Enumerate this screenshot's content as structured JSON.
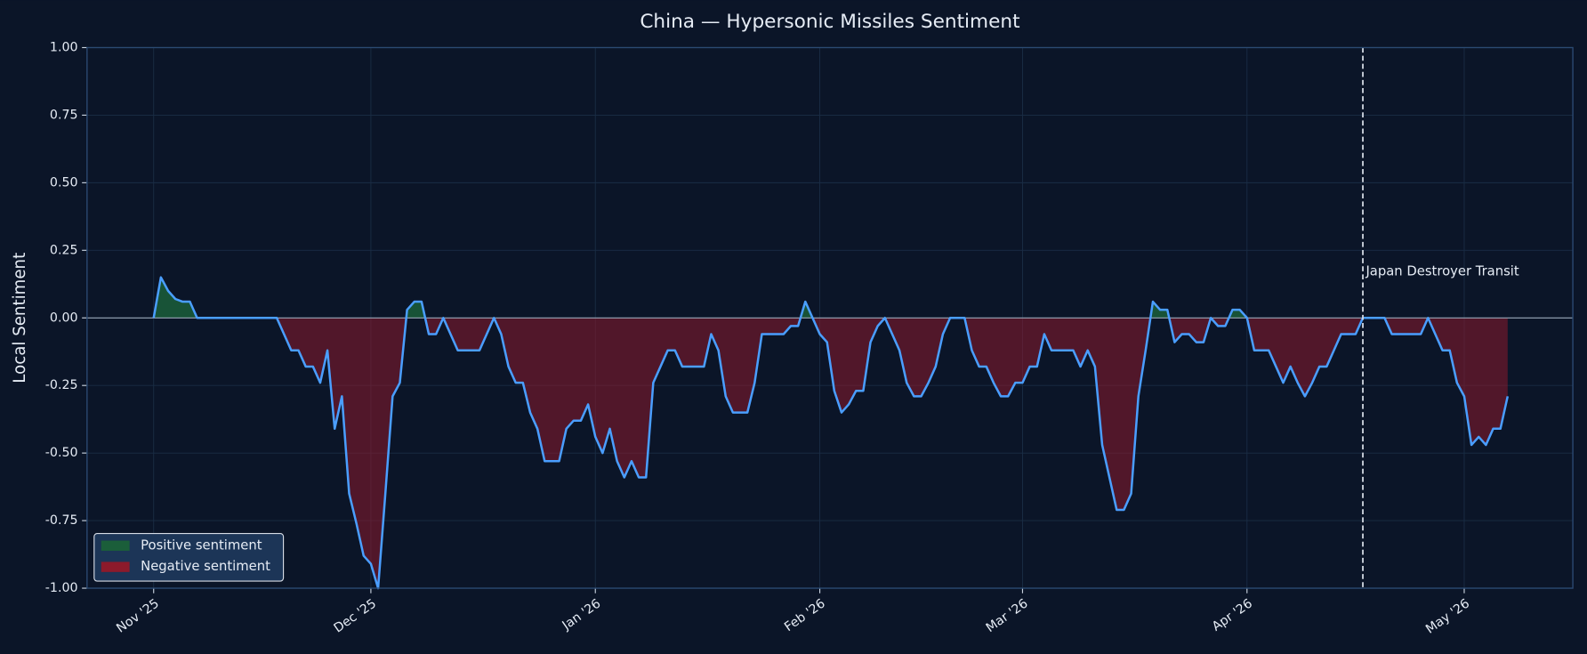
{
  "chart_data": {
    "type": "line",
    "title": "China — Hypersonic Missiles Sentiment",
    "ylabel": "Local Sentiment",
    "values": [
      0.0,
      0.15,
      0.1,
      0.07,
      0.06,
      0.06,
      0.0,
      0.0,
      0.0,
      0.0,
      0.0,
      0.0,
      0.0,
      0.0,
      0.0,
      0.0,
      0.0,
      0.0,
      -0.06,
      -0.12,
      -0.12,
      -0.18,
      -0.18,
      -0.24,
      -0.12,
      -0.41,
      -0.29,
      -0.65,
      -0.76,
      -0.88,
      -0.91,
      -1.0,
      -0.65,
      -0.29,
      -0.24,
      0.03,
      0.06,
      0.06,
      -0.06,
      -0.06,
      0.0,
      -0.06,
      -0.12,
      -0.12,
      -0.12,
      -0.12,
      -0.06,
      0.0,
      -0.06,
      -0.18,
      -0.24,
      -0.24,
      -0.35,
      -0.41,
      -0.53,
      -0.53,
      -0.53,
      -0.41,
      -0.38,
      -0.38,
      -0.32,
      -0.44,
      -0.5,
      -0.41,
      -0.53,
      -0.59,
      -0.53,
      -0.59,
      -0.59,
      -0.24,
      -0.18,
      -0.12,
      -0.12,
      -0.18,
      -0.18,
      -0.18,
      -0.18,
      -0.06,
      -0.12,
      -0.29,
      -0.35,
      -0.35,
      -0.35,
      -0.24,
      -0.06,
      -0.06,
      -0.06,
      -0.06,
      -0.03,
      -0.03,
      0.06,
      0.0,
      -0.06,
      -0.09,
      -0.27,
      -0.35,
      -0.32,
      -0.27,
      -0.27,
      -0.09,
      -0.03,
      0.0,
      -0.06,
      -0.12,
      -0.24,
      -0.29,
      -0.29,
      -0.24,
      -0.18,
      -0.06,
      0.0,
      0.0,
      0.0,
      -0.12,
      -0.18,
      -0.18,
      -0.24,
      -0.29,
      -0.29,
      -0.24,
      -0.24,
      -0.18,
      -0.18,
      -0.06,
      -0.12,
      -0.12,
      -0.12,
      -0.12,
      -0.18,
      -0.12,
      -0.18,
      -0.47,
      -0.59,
      -0.71,
      -0.71,
      -0.65,
      -0.29,
      -0.12,
      0.06,
      0.03,
      0.03,
      -0.09,
      -0.06,
      -0.06,
      -0.09,
      -0.09,
      0.0,
      -0.03,
      -0.03,
      0.03,
      0.03,
      0.0,
      -0.12,
      -0.12,
      -0.12,
      -0.18,
      -0.24,
      -0.18,
      -0.24,
      -0.29,
      -0.24,
      -0.18,
      -0.18,
      -0.12,
      -0.06,
      -0.06,
      -0.06,
      0.0,
      0.0,
      0.0,
      0.0,
      -0.06,
      -0.06,
      -0.06,
      -0.06,
      -0.06,
      0.0,
      -0.06,
      -0.12,
      -0.12,
      -0.24,
      -0.29,
      -0.47,
      -0.44,
      -0.47,
      -0.41,
      -0.41,
      -0.29
    ],
    "color": "#4a9eff",
    "fills": [
      {
        "name": "Positive sentiment",
        "color": "#1b5e3a"
      },
      {
        "name": "Negative sentiment",
        "color": "#8c1a2b"
      }
    ],
    "xlim": [
      -9.2,
      196
    ],
    "xticks": [
      {
        "value": 0,
        "label": "Nov '25"
      },
      {
        "value": 30,
        "label": "Dec '25"
      },
      {
        "value": 61,
        "label": "Jan '26"
      },
      {
        "value": 92,
        "label": "Feb '26"
      },
      {
        "value": 120,
        "label": "Mar '26"
      },
      {
        "value": 151,
        "label": "Apr '26"
      },
      {
        "value": 181,
        "label": "May '26"
      }
    ],
    "ylim": [
      -1.0,
      1.0
    ],
    "yticks": [
      {
        "value": -1.0,
        "label": "-1.00"
      },
      {
        "value": -0.75,
        "label": "-0.75"
      },
      {
        "value": -0.5,
        "label": "-0.50"
      },
      {
        "value": -0.25,
        "label": "-0.25"
      },
      {
        "value": 0.0,
        "label": "0.00"
      },
      {
        "value": 0.25,
        "label": "0.25"
      },
      {
        "value": 0.5,
        "label": "0.50"
      },
      {
        "value": 0.75,
        "label": "0.75"
      },
      {
        "value": 1.0,
        "label": "1.00"
      }
    ],
    "grid": true,
    "legend": "lower left",
    "annotations": [
      {
        "text": "Japan Destroyer Transit",
        "x": 167
      }
    ]
  }
}
